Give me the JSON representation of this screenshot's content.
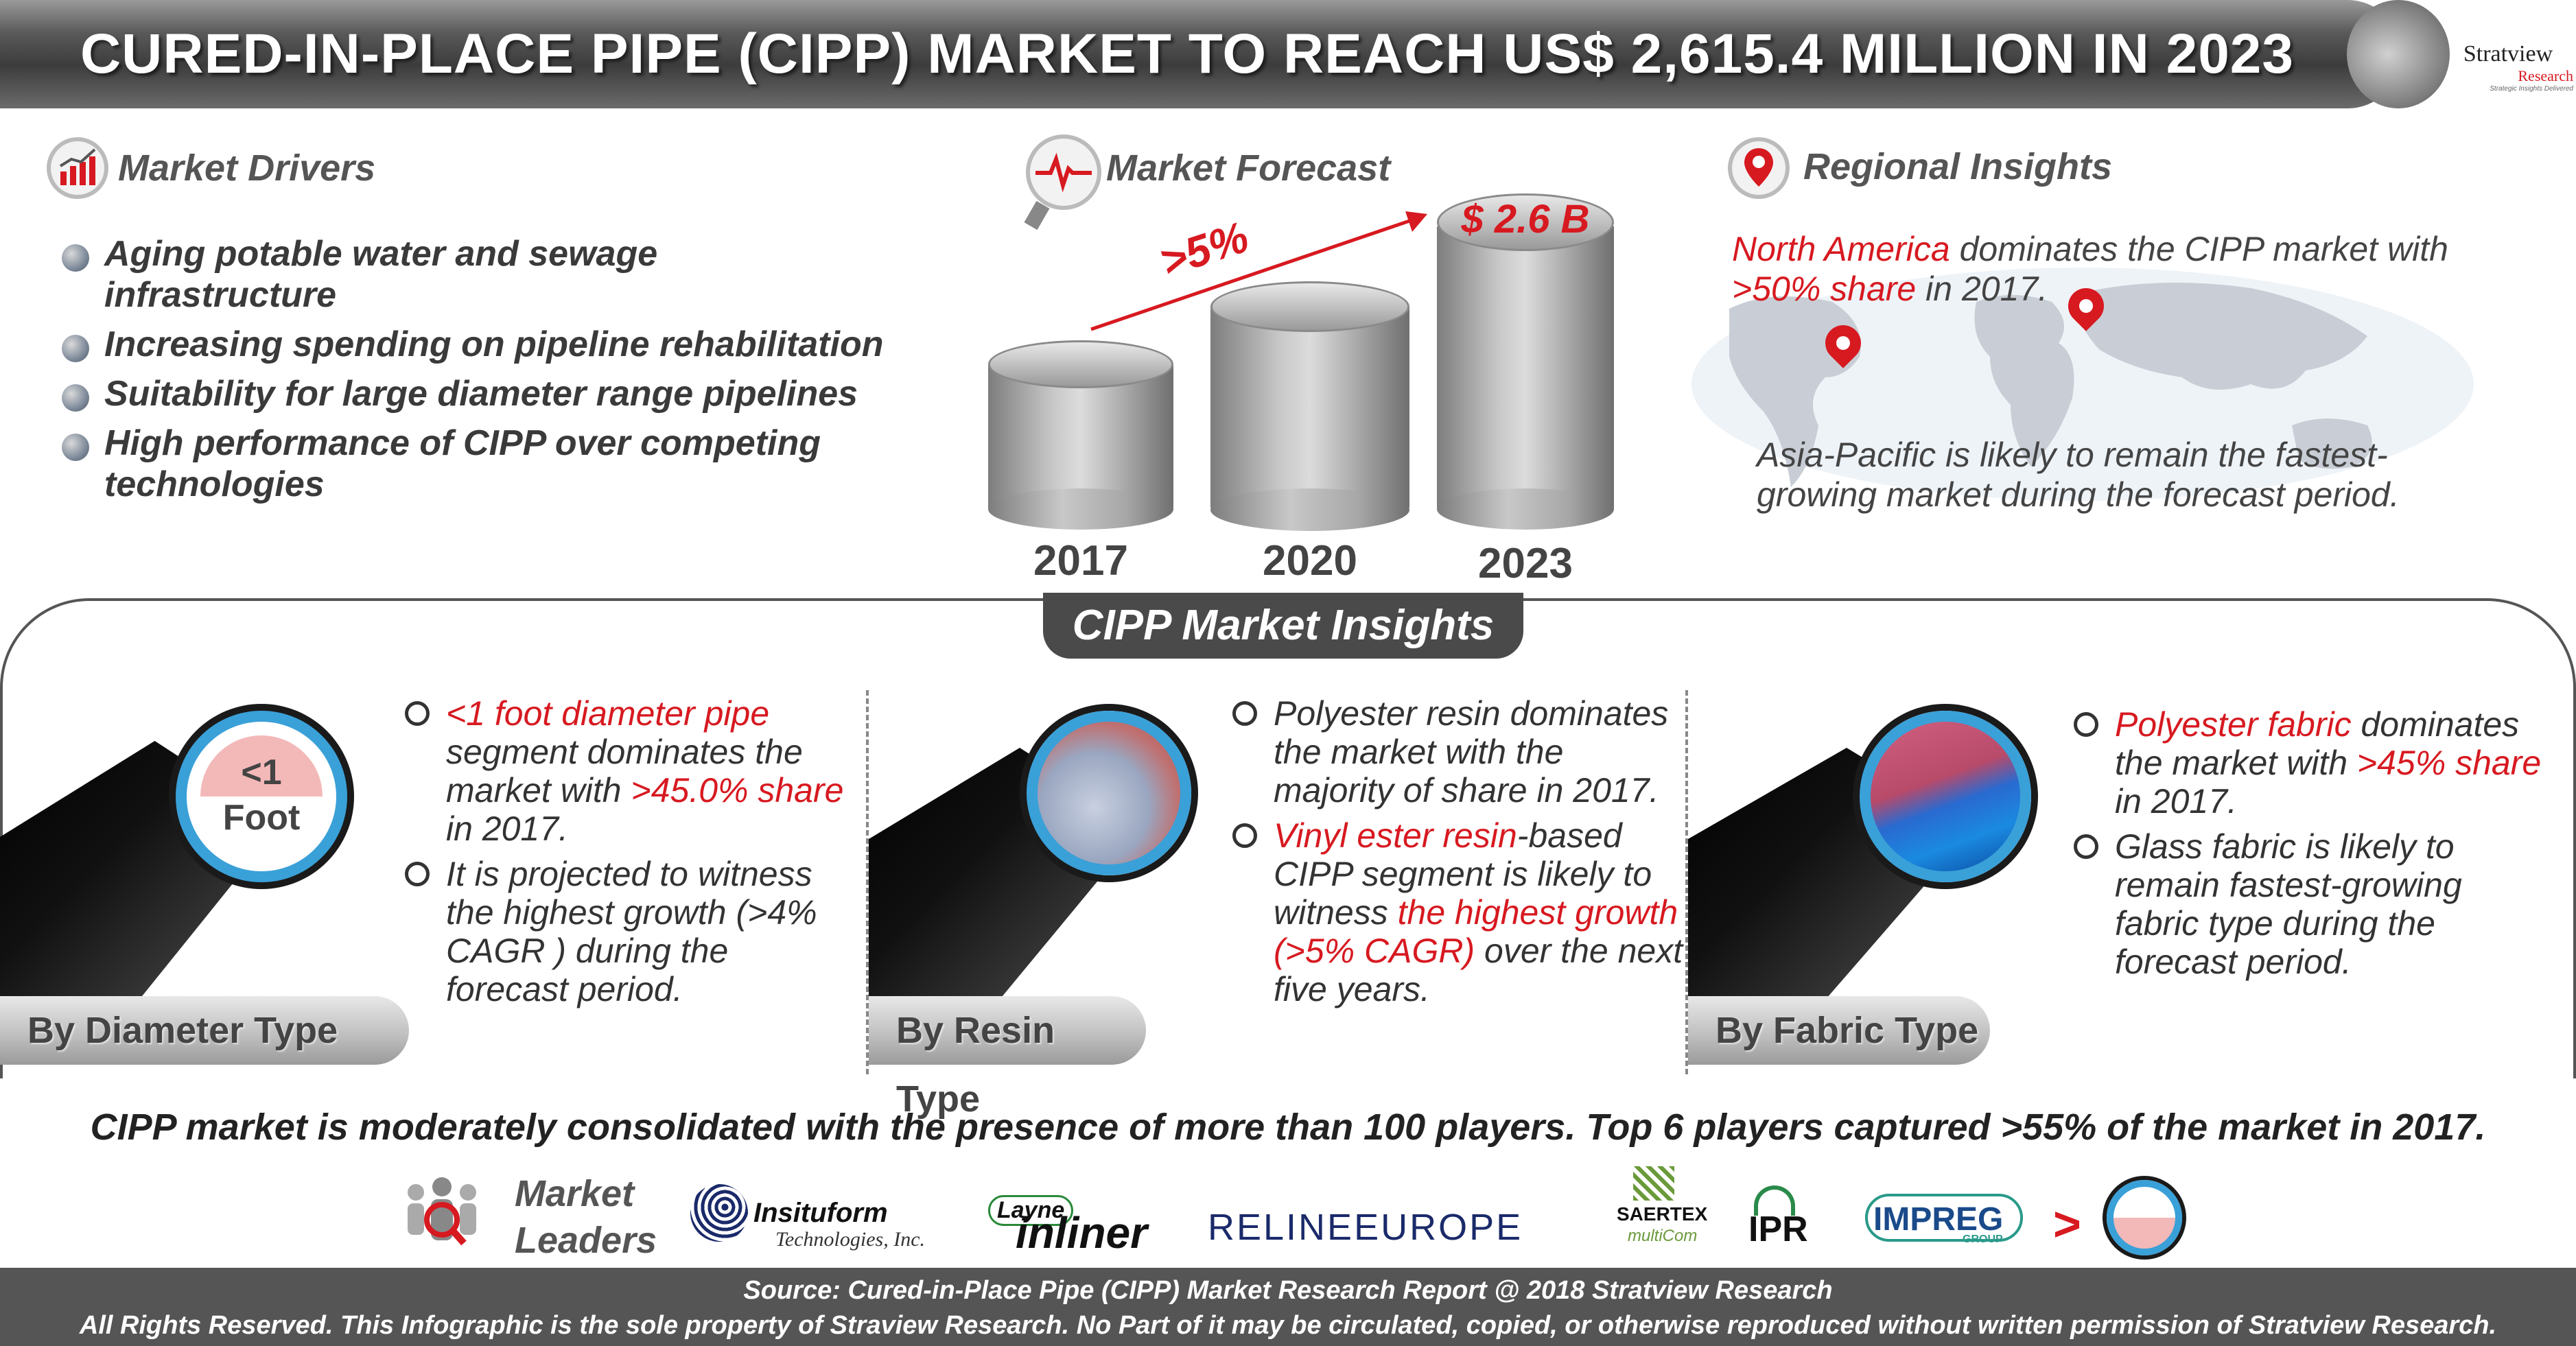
{
  "header": {
    "title": "CURED-IN-PLACE PIPE (CIPP) MARKET TO REACH US$ 2,615.4 MILLION IN 2023",
    "logo_name": "Stratview",
    "logo_sub": "Research",
    "logo_tagline": "Strategic Insights Delivered"
  },
  "drivers": {
    "heading": "Market Drivers",
    "icon": "bar-chart-icon",
    "items": [
      "Aging potable water and sewage infrastructure",
      "Increasing spending on pipeline rehabilitation",
      "Suitability for large diameter range pipelines",
      "High performance of CIPP over competing technologies"
    ]
  },
  "forecast": {
    "heading": "Market Forecast",
    "icon": "magnifier-pulse-icon",
    "growth_label": ">5%",
    "value_label": "$ 2.6 B",
    "years": [
      "2017",
      "2020",
      "2023"
    ]
  },
  "regional": {
    "heading": "Regional Insights",
    "icon": "location-pin-icon",
    "highlight_region": "North America",
    "text_1": " dominates the CIPP market with ",
    "highlight_share": ">50% share",
    "text_2": " in 2017.",
    "text_3": "Asia-Pacific is likely to remain the fastest-growing market during the forecast period."
  },
  "insights": {
    "title": "CIPP Market Insights",
    "diameter": {
      "tab": "By Diameter Type",
      "pipe_top": "<1",
      "pipe_bottom": "Foot",
      "b1_red": "<1 foot diameter pipe",
      "b1_text_a": " segment dominates the market with ",
      "b1_red2": ">45.0% share",
      "b1_text_b": " in 2017.",
      "b2": "It is projected to witness the highest growth (>4% CAGR ) during the forecast period."
    },
    "resin": {
      "tab": "By Resin Type",
      "b1": "Polyester resin dominates the market with the majority of share in 2017.",
      "b2_red": "Vinyl ester resin",
      "b2_text_a": "-based CIPP segment is likely to witness ",
      "b2_red2": "the highest growth (>5% CAGR)",
      "b2_text_b": " over the next five years."
    },
    "fabric": {
      "tab": "By Fabric Type",
      "b1_red": "Polyester fabric",
      "b1_text_a": " dominates the market with ",
      "b1_red2": ">45% share",
      "b1_text_b": " in 2017.",
      "b2": "Glass fabric is likely to remain fastest-growing fabric type during the forecast period."
    }
  },
  "market": {
    "consolidated": "CIPP market is moderately consolidated with the presence of more than 100 players. Top 6 players captured >55% of the market in 2017.",
    "leaders_label_1": "Market",
    "leaders_label_2": "Leaders",
    "companies": {
      "insituform": "Insituform",
      "insituform_sub": "Technologies, Inc.",
      "layne": "Layne",
      "inliner": "inliner",
      "reline": "RELINEEUROPE",
      "saertex": "SAERTEX",
      "saertex_sub": "multiCom",
      "ipr": "IPR",
      "impreg": "IMPREG",
      "impreg_sub": "GROUP",
      "more": ">"
    }
  },
  "footer": {
    "source": "Source: Cured-in-Place Pipe (CIPP) Market Research Report @ 2018 Stratview Research",
    "rights": "All Rights Reserved. This Infographic is the sole property of Straview Research. No Part of it may be circulated, copied, or otherwise reproduced without written permission of Stratview Research."
  },
  "colors": {
    "accent_red": "#d71920",
    "pipe_blue": "#3aa0d8",
    "footer_gray": "#555555"
  }
}
